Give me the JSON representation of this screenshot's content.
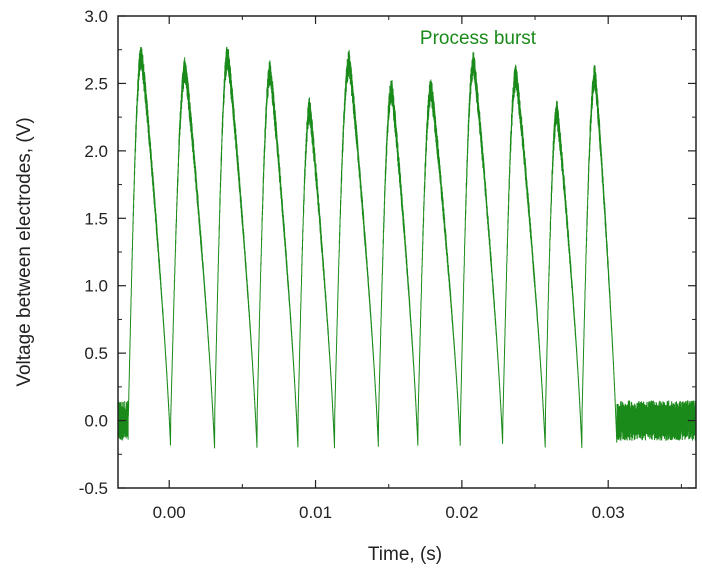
{
  "chart_data": {
    "type": "line",
    "title": "",
    "xlabel": "Time, (s)",
    "ylabel": "Voltage between electrodes, (V)",
    "xlim": [
      -0.0035,
      0.036
    ],
    "ylim": [
      -0.5,
      3.0
    ],
    "x_ticks": [
      0.0,
      0.01,
      0.02,
      0.03
    ],
    "x_tick_labels": [
      "0.00",
      "0.01",
      "0.02",
      "0.03"
    ],
    "y_ticks": [
      -0.5,
      0.0,
      0.5,
      1.0,
      1.5,
      2.0,
      2.5,
      3.0
    ],
    "y_tick_labels": [
      "-0.5",
      "0.0",
      "0.5",
      "1.0",
      "1.5",
      "2.0",
      "2.5",
      "3.0"
    ],
    "grid": false,
    "annotation": "Process burst",
    "colors": {
      "series": "#1a8a1a",
      "axis": "#222222"
    },
    "burst": {
      "start": -0.0028,
      "end": 0.0306,
      "idle_noise_amplitude": 0.15,
      "peak_noise_amplitude": 0.1
    },
    "series": [
      {
        "pulses": [
          {
            "t_start": -0.0028,
            "t_peak": -0.0019,
            "t_end": 0.0001,
            "peak": 2.7
          },
          {
            "t_start": 0.0001,
            "t_peak": 0.0011,
            "t_end": 0.0031,
            "peak": 2.6
          },
          {
            "t_start": 0.0031,
            "t_peak": 0.004,
            "t_end": 0.006,
            "peak": 2.7
          },
          {
            "t_start": 0.006,
            "t_peak": 0.0069,
            "t_end": 0.0088,
            "peak": 2.58
          },
          {
            "t_start": 0.0088,
            "t_peak": 0.0096,
            "t_end": 0.0113,
            "peak": 2.3
          },
          {
            "t_start": 0.0113,
            "t_peak": 0.0123,
            "t_end": 0.0143,
            "peak": 2.65
          },
          {
            "t_start": 0.0143,
            "t_peak": 0.0152,
            "t_end": 0.017,
            "peak": 2.45
          },
          {
            "t_start": 0.017,
            "t_peak": 0.0179,
            "t_end": 0.0199,
            "peak": 2.45
          },
          {
            "t_start": 0.0199,
            "t_peak": 0.0208,
            "t_end": 0.0228,
            "peak": 2.65
          },
          {
            "t_start": 0.0228,
            "t_peak": 0.0237,
            "t_end": 0.0257,
            "peak": 2.55
          },
          {
            "t_start": 0.0257,
            "t_peak": 0.0265,
            "t_end": 0.0282,
            "peak": 2.28
          },
          {
            "t_start": 0.0282,
            "t_peak": 0.0291,
            "t_end": 0.0306,
            "peak": 2.55
          }
        ]
      }
    ]
  }
}
